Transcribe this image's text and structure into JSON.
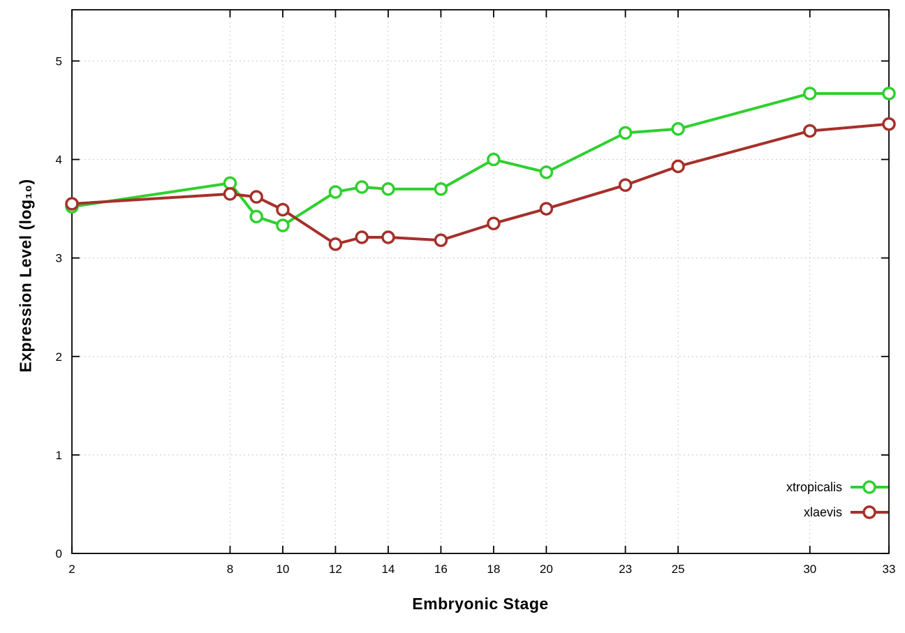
{
  "chart_data": {
    "type": "line",
    "title": "",
    "xlabel": "Embryonic Stage",
    "ylabel": "Expression Level (log₁₀)",
    "xlim": [
      2,
      33
    ],
    "ylim": [
      0,
      5.52
    ],
    "xticks": [
      2,
      8,
      10,
      12,
      14,
      16,
      18,
      20,
      23,
      25,
      30,
      33
    ],
    "yticks": [
      0,
      1,
      2,
      3,
      4,
      5
    ],
    "grid": true,
    "grid_style": "dotted",
    "legend_position": "inside-bottom-right",
    "x": [
      2,
      8,
      9,
      10,
      12,
      13,
      14,
      16,
      18,
      20,
      23,
      25,
      30,
      33
    ],
    "series": [
      {
        "name": "xtropicalis",
        "color": "#2fd02f",
        "marker": "open-circle",
        "values": [
          3.52,
          3.76,
          3.42,
          3.33,
          3.67,
          3.72,
          3.7,
          3.7,
          4.0,
          3.87,
          4.27,
          4.31,
          4.67,
          4.67
        ]
      },
      {
        "name": "xlaevis",
        "color": "#a5302a",
        "marker": "open-circle",
        "values": [
          3.55,
          3.65,
          3.62,
          3.49,
          3.14,
          3.21,
          3.21,
          3.18,
          3.35,
          3.5,
          3.74,
          3.93,
          4.29,
          4.36
        ]
      }
    ]
  }
}
